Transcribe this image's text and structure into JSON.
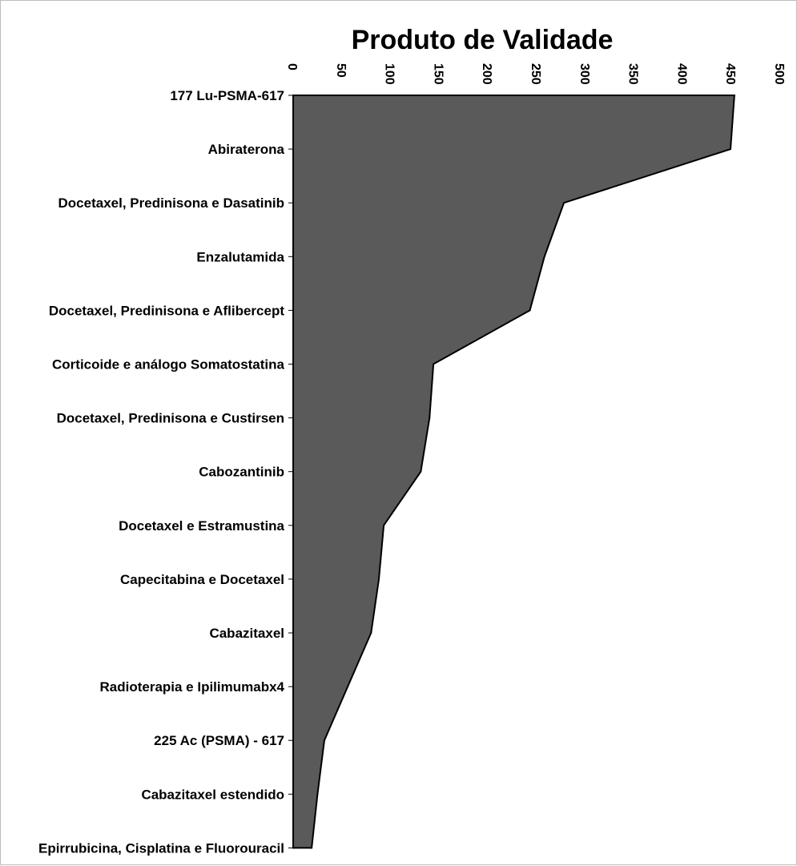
{
  "chart_data": {
    "type": "area",
    "orientation": "horizontal",
    "title": "Produto de Validade",
    "xlabel": "",
    "ylabel": "",
    "xlim": [
      0,
      500
    ],
    "x_ticks": [
      0,
      50,
      100,
      150,
      200,
      250,
      300,
      350,
      400,
      450,
      500
    ],
    "x_tick_labels": [
      "0",
      "50",
      "100",
      "150",
      "200",
      "250",
      "300",
      "350",
      "400",
      "450",
      "500"
    ],
    "axis_position": "top",
    "grid": false,
    "legend": "none",
    "fill_color": "#5a5a5a",
    "line_color": "#000000",
    "categories": [
      "177 Lu-PSMA-617",
      "Abiraterona",
      "Docetaxel, Predinisona e Dasatinib",
      "Enzalutamida",
      "Docetaxel, Predinisona e Aflibercept",
      "Corticoide e análogo Somatostatina",
      "Docetaxel, Predinisona e Custirsen",
      "Cabozantinib",
      "Docetaxel e Estramustina ",
      "Capecitabina e Docetaxel",
      "Cabazitaxel",
      "Radioterapia e Ipilimumabx4",
      "225 Ac (PSMA) - 617",
      "Cabazitaxel estendido",
      "Epirrubicina, Cisplatina e Fluorouracil"
    ],
    "values": [
      453,
      449,
      278,
      258,
      243,
      144,
      140,
      131,
      93,
      88,
      80,
      56,
      32,
      25,
      19
    ]
  }
}
